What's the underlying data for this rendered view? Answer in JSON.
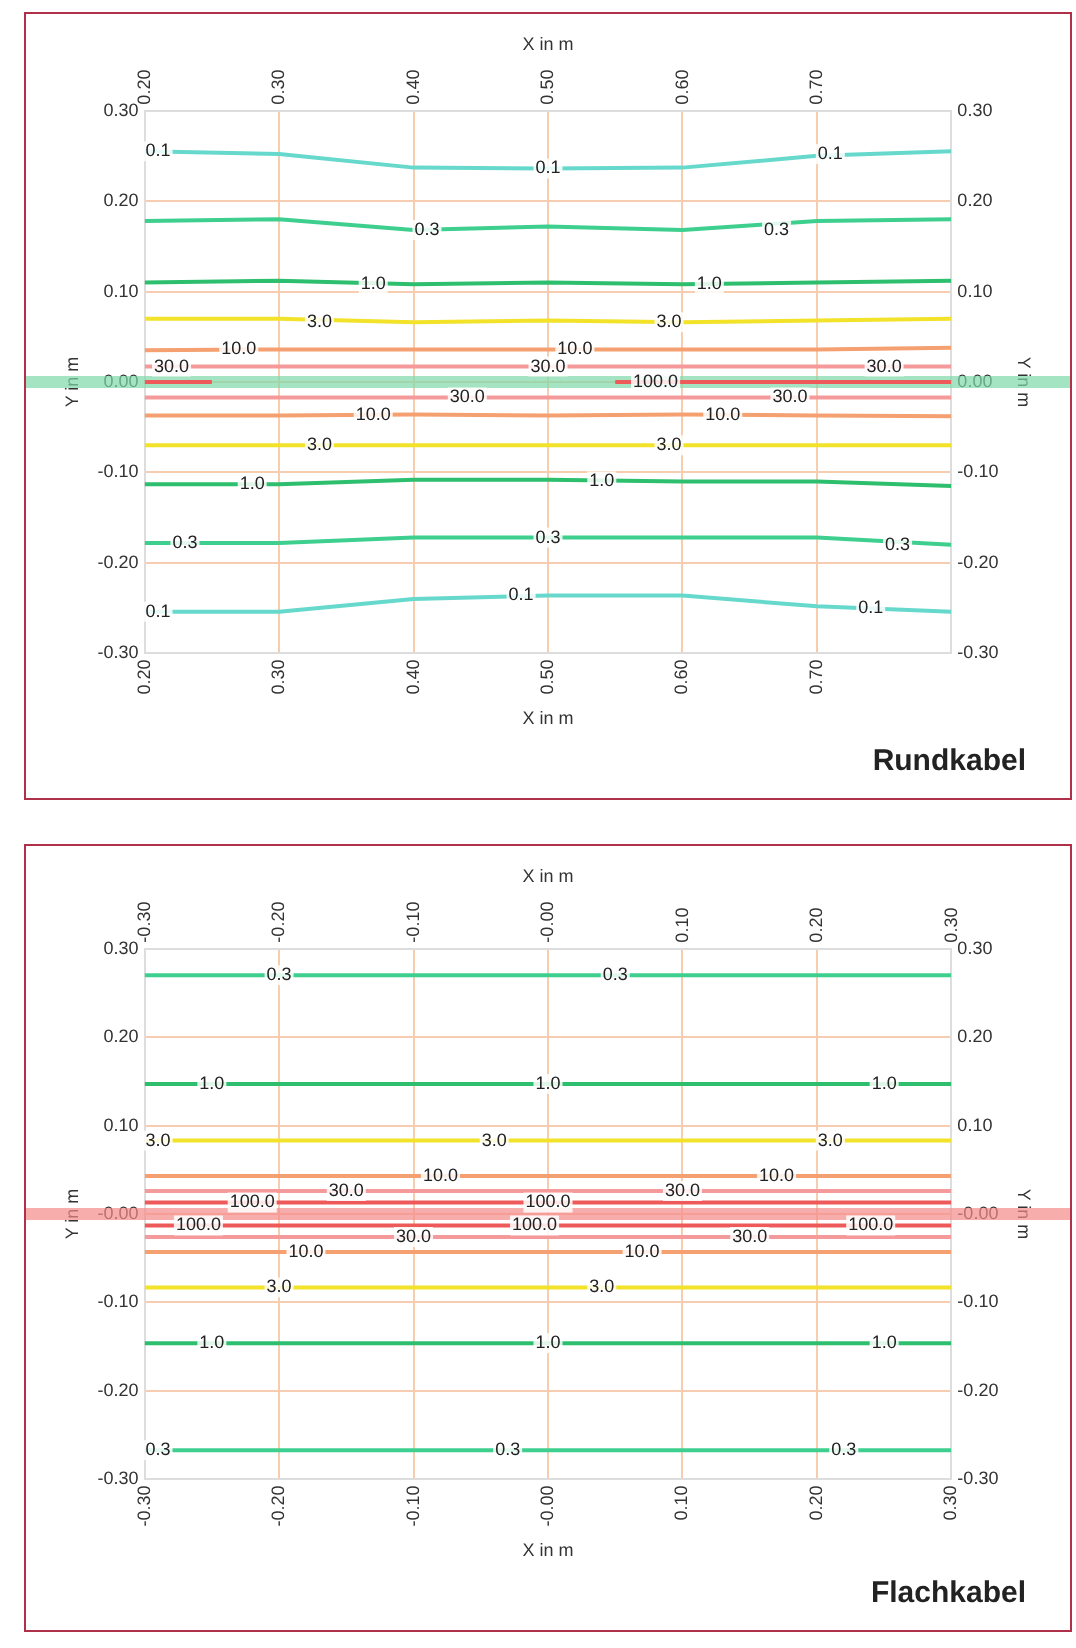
{
  "chart_data": [
    {
      "type": "line",
      "xlabel": "X in m",
      "x2label": "X in m",
      "ylabel": "Y in m",
      "y2label": "Y in m",
      "grid": true,
      "legend": false,
      "marker": "none",
      "line_style": "solid",
      "xlim": [
        0.2,
        0.8
      ],
      "xticks": [
        {
          "value": 0.2,
          "label": "0.20"
        },
        {
          "value": 0.3,
          "label": "0.30"
        },
        {
          "value": 0.4,
          "label": "0.40"
        },
        {
          "value": 0.5,
          "label": "0.50"
        },
        {
          "value": 0.6,
          "label": "0.60"
        },
        {
          "value": 0.7,
          "label": "0.70"
        }
      ],
      "x2lim": [
        0.2,
        0.8
      ],
      "x2ticks": [
        {
          "value": 0.2,
          "label": "0.20"
        },
        {
          "value": 0.3,
          "label": "0.30"
        },
        {
          "value": 0.4,
          "label": "0.40"
        },
        {
          "value": 0.5,
          "label": "0.50"
        },
        {
          "value": 0.6,
          "label": "0.60"
        },
        {
          "value": 0.7,
          "label": "0.70"
        }
      ],
      "ylim": [
        -0.3,
        0.3
      ],
      "yticks": [
        {
          "value": -0.3,
          "label": "-0.30"
        },
        {
          "value": -0.2,
          "label": "-0.20"
        },
        {
          "value": -0.1,
          "label": "-0.10"
        },
        {
          "value": 0,
          "label": "0.00"
        },
        {
          "value": 0.1,
          "label": "0.10"
        },
        {
          "value": 0.2,
          "label": "0.20"
        },
        {
          "value": 0.3,
          "label": "0.30"
        }
      ],
      "y2lim": [
        -0.3,
        0.3
      ],
      "y2ticks": [
        {
          "value": -0.3,
          "label": "-0.30"
        },
        {
          "value": -0.2,
          "label": "-0.20"
        },
        {
          "value": -0.1,
          "label": "-0.10"
        },
        {
          "value": 0,
          "label": "0.00"
        },
        {
          "value": 0.1,
          "label": "0.10"
        },
        {
          "value": 0.2,
          "label": "0.20"
        },
        {
          "value": 0.3,
          "label": "0.30"
        }
      ],
      "x": [
        0.2,
        0.3,
        0.4,
        0.5,
        0.6,
        0.7,
        0.8
      ],
      "ref_lines": [
        {
          "axis": "y",
          "value": 0,
          "color": "#7fd8a8"
        }
      ],
      "series": [
        {
          "color": "#66d9cc",
          "values": [
            0.255,
            0.252,
            0.237,
            0.236,
            0.237,
            0.25,
            0.255
          ]
        },
        {
          "color": "#3ecf8e",
          "values": [
            0.178,
            0.18,
            0.168,
            0.172,
            0.168,
            0.178,
            0.18
          ]
        },
        {
          "color": "#2dbf6e",
          "values": [
            0.11,
            0.112,
            0.108,
            0.11,
            0.108,
            0.11,
            0.112
          ]
        },
        {
          "color": "#f2e22a",
          "values": [
            0.07,
            0.07,
            0.066,
            0.068,
            0.066,
            0.068,
            0.07
          ]
        },
        {
          "color": "#f5a070",
          "values": [
            0.035,
            0.036,
            0.036,
            0.036,
            0.036,
            0.036,
            0.038
          ]
        },
        {
          "color": "#f59a9a",
          "values": [
            0.017,
            0.017,
            0.017,
            0.017,
            0.017,
            0.017,
            0.017
          ]
        },
        {
          "color": "#ee5a5a",
          "x": [
            0.2,
            0.25,
            0.3,
            0.55,
            0.8
          ],
          "values": [
            0,
            0,
            null,
            0,
            0
          ]
        },
        {
          "color": "#f59a9a",
          "values": [
            -0.017,
            -0.017,
            -0.017,
            -0.017,
            -0.017,
            -0.017,
            -0.017
          ]
        },
        {
          "color": "#f5a070",
          "values": [
            -0.037,
            -0.037,
            -0.036,
            -0.037,
            -0.036,
            -0.037,
            -0.038
          ]
        },
        {
          "color": "#f2e22a",
          "values": [
            -0.07,
            -0.07,
            -0.07,
            -0.07,
            -0.07,
            -0.07,
            -0.07
          ]
        },
        {
          "color": "#2dbf6e",
          "values": [
            -0.113,
            -0.113,
            -0.108,
            -0.108,
            -0.11,
            -0.11,
            -0.115
          ]
        },
        {
          "color": "#3ecf8e",
          "values": [
            -0.178,
            -0.178,
            -0.172,
            -0.172,
            -0.172,
            -0.172,
            -0.18
          ]
        },
        {
          "color": "#66d9cc",
          "values": [
            -0.254,
            -0.254,
            -0.24,
            -0.236,
            -0.236,
            -0.248,
            -0.254
          ]
        }
      ],
      "annotations": [
        "Rundkabel",
        {
          "text": "0.1",
          "x": 0.21,
          "y": 0.255
        },
        {
          "text": "0.1",
          "x": 0.5,
          "y": 0.236
        },
        {
          "text": "0.1",
          "x": 0.71,
          "y": 0.252
        },
        {
          "text": "0.3",
          "x": 0.41,
          "y": 0.168
        },
        {
          "text": "0.3",
          "x": 0.67,
          "y": 0.168
        },
        {
          "text": "1.0",
          "x": 0.37,
          "y": 0.108
        },
        {
          "text": "1.0",
          "x": 0.62,
          "y": 0.108
        },
        {
          "text": "3.0",
          "x": 0.33,
          "y": 0.066
        },
        {
          "text": "3.0",
          "x": 0.59,
          "y": 0.066
        },
        {
          "text": "10.0",
          "x": 0.27,
          "y": 0.036
        },
        {
          "text": "10.0",
          "x": 0.52,
          "y": 0.036
        },
        {
          "text": "30.0",
          "x": 0.22,
          "y": 0.017
        },
        {
          "text": "30.0",
          "x": 0.5,
          "y": 0.017
        },
        {
          "text": "30.0",
          "x": 0.75,
          "y": 0.017
        },
        {
          "text": "100.0",
          "x": 0.58,
          "y": 0
        },
        {
          "text": "30.0",
          "x": 0.44,
          "y": -0.017
        },
        {
          "text": "30.0",
          "x": 0.68,
          "y": -0.017
        },
        {
          "text": "10.0",
          "x": 0.37,
          "y": -0.037
        },
        {
          "text": "10.0",
          "x": 0.63,
          "y": -0.037
        },
        {
          "text": "3.0",
          "x": 0.33,
          "y": -0.07
        },
        {
          "text": "3.0",
          "x": 0.59,
          "y": -0.07
        },
        {
          "text": "1.0",
          "x": 0.28,
          "y": -0.113
        },
        {
          "text": "1.0",
          "x": 0.54,
          "y": -0.11
        },
        {
          "text": "0.3",
          "x": 0.23,
          "y": -0.178
        },
        {
          "text": "0.3",
          "x": 0.5,
          "y": -0.172
        },
        {
          "text": "0.3",
          "x": 0.76,
          "y": -0.18
        },
        {
          "text": "0.1",
          "x": 0.21,
          "y": -0.254
        },
        {
          "text": "0.1",
          "x": 0.48,
          "y": -0.236
        },
        {
          "text": "0.1",
          "x": 0.74,
          "y": -0.25
        }
      ]
    },
    {
      "type": "line",
      "xlabel": "X in m",
      "x2label": "X in m",
      "ylabel": "Y in m",
      "y2label": "Y in m",
      "grid": true,
      "legend": false,
      "marker": "none",
      "line_style": "solid",
      "xlim": [
        -0.3,
        0.3
      ],
      "xticks": [
        {
          "value": -0.3,
          "label": "-0.30"
        },
        {
          "value": -0.2,
          "label": "-0.20"
        },
        {
          "value": -0.1,
          "label": "-0.10"
        },
        {
          "value": 0,
          "label": "-0.00"
        },
        {
          "value": 0.1,
          "label": "0.10"
        },
        {
          "value": 0.2,
          "label": "0.20"
        },
        {
          "value": 0.3,
          "label": "0.30"
        }
      ],
      "x2lim": [
        -0.3,
        0.3
      ],
      "x2ticks": [
        {
          "value": -0.3,
          "label": "-0.30"
        },
        {
          "value": -0.2,
          "label": "-0.20"
        },
        {
          "value": -0.1,
          "label": "-0.10"
        },
        {
          "value": 0,
          "label": "-0.00"
        },
        {
          "value": 0.1,
          "label": "0.10"
        },
        {
          "value": 0.2,
          "label": "0.20"
        },
        {
          "value": 0.3,
          "label": "0.30"
        }
      ],
      "ylim": [
        -0.3,
        0.3
      ],
      "yticks": [
        {
          "value": -0.3,
          "label": "-0.30"
        },
        {
          "value": -0.2,
          "label": "-0.20"
        },
        {
          "value": -0.1,
          "label": "-0.10"
        },
        {
          "value": 0,
          "label": "-0.00"
        },
        {
          "value": 0.1,
          "label": "0.10"
        },
        {
          "value": 0.2,
          "label": "0.20"
        },
        {
          "value": 0.3,
          "label": "0.30"
        }
      ],
      "y2lim": [
        -0.3,
        0.3
      ],
      "y2ticks": [
        {
          "value": -0.3,
          "label": "-0.30"
        },
        {
          "value": -0.2,
          "label": "-0.20"
        },
        {
          "value": -0.1,
          "label": "-0.10"
        },
        {
          "value": 0,
          "label": "-0.00"
        },
        {
          "value": 0.1,
          "label": "0.10"
        },
        {
          "value": 0.2,
          "label": "0.20"
        },
        {
          "value": 0.3,
          "label": "0.30"
        }
      ],
      "x": [
        -0.3,
        0.3
      ],
      "ref_lines": [
        {
          "axis": "y",
          "value": 0,
          "color": "#f58a8a"
        }
      ],
      "series": [
        {
          "color": "#3ecf8e",
          "values": [
            0.27,
            0.27
          ]
        },
        {
          "color": "#2dbf6e",
          "values": [
            0.147,
            0.147
          ]
        },
        {
          "color": "#f2e22a",
          "values": [
            0.083,
            0.083
          ]
        },
        {
          "color": "#f5a070",
          "values": [
            0.043,
            0.043
          ]
        },
        {
          "color": "#f59a9a",
          "values": [
            0.026,
            0.026
          ]
        },
        {
          "color": "#ee5a5a",
          "values": [
            0.013,
            0.013
          ]
        },
        {
          "color": "#ee5a5a",
          "values": [
            -0.013,
            -0.013
          ]
        },
        {
          "color": "#f59a9a",
          "values": [
            -0.026,
            -0.026
          ]
        },
        {
          "color": "#f5a070",
          "values": [
            -0.043,
            -0.043
          ]
        },
        {
          "color": "#f2e22a",
          "values": [
            -0.083,
            -0.083
          ]
        },
        {
          "color": "#2dbf6e",
          "values": [
            -0.146,
            -0.146
          ]
        },
        {
          "color": "#3ecf8e",
          "values": [
            -0.267,
            -0.267
          ]
        }
      ],
      "annotations": [
        "Flachkabel",
        {
          "text": "0.3",
          "x": -0.2,
          "y": 0.27
        },
        {
          "text": "0.3",
          "x": 0.05,
          "y": 0.27
        },
        {
          "text": "1.0",
          "x": -0.25,
          "y": 0.147
        },
        {
          "text": "1.0",
          "x": 0,
          "y": 0.147
        },
        {
          "text": "1.0",
          "x": 0.25,
          "y": 0.147
        },
        {
          "text": "3.0",
          "x": -0.29,
          "y": 0.083
        },
        {
          "text": "3.0",
          "x": -0.04,
          "y": 0.083
        },
        {
          "text": "3.0",
          "x": 0.21,
          "y": 0.083
        },
        {
          "text": "10.0",
          "x": -0.08,
          "y": 0.043
        },
        {
          "text": "10.0",
          "x": 0.17,
          "y": 0.043
        },
        {
          "text": "30.0",
          "x": -0.15,
          "y": 0.026
        },
        {
          "text": "30.0",
          "x": 0.1,
          "y": 0.026
        },
        {
          "text": "100.0",
          "x": -0.22,
          "y": 0.013
        },
        {
          "text": "100.0",
          "x": 0,
          "y": 0.013
        },
        {
          "text": "100.0",
          "x": -0.26,
          "y": -0.013
        },
        {
          "text": "100.0",
          "x": -0.01,
          "y": -0.013
        },
        {
          "text": "100.0",
          "x": 0.24,
          "y": -0.013
        },
        {
          "text": "30.0",
          "x": -0.1,
          "y": -0.026
        },
        {
          "text": "30.0",
          "x": 0.15,
          "y": -0.026
        },
        {
          "text": "10.0",
          "x": -0.18,
          "y": -0.043
        },
        {
          "text": "10.0",
          "x": 0.07,
          "y": -0.043
        },
        {
          "text": "3.0",
          "x": -0.2,
          "y": -0.083
        },
        {
          "text": "3.0",
          "x": 0.04,
          "y": -0.083
        },
        {
          "text": "1.0",
          "x": -0.25,
          "y": -0.146
        },
        {
          "text": "1.0",
          "x": 0,
          "y": -0.146
        },
        {
          "text": "1.0",
          "x": 0.25,
          "y": -0.146
        },
        {
          "text": "0.3",
          "x": -0.29,
          "y": -0.267
        },
        {
          "text": "0.3",
          "x": -0.03,
          "y": -0.267
        },
        {
          "text": "0.3",
          "x": 0.22,
          "y": -0.267
        }
      ]
    }
  ]
}
